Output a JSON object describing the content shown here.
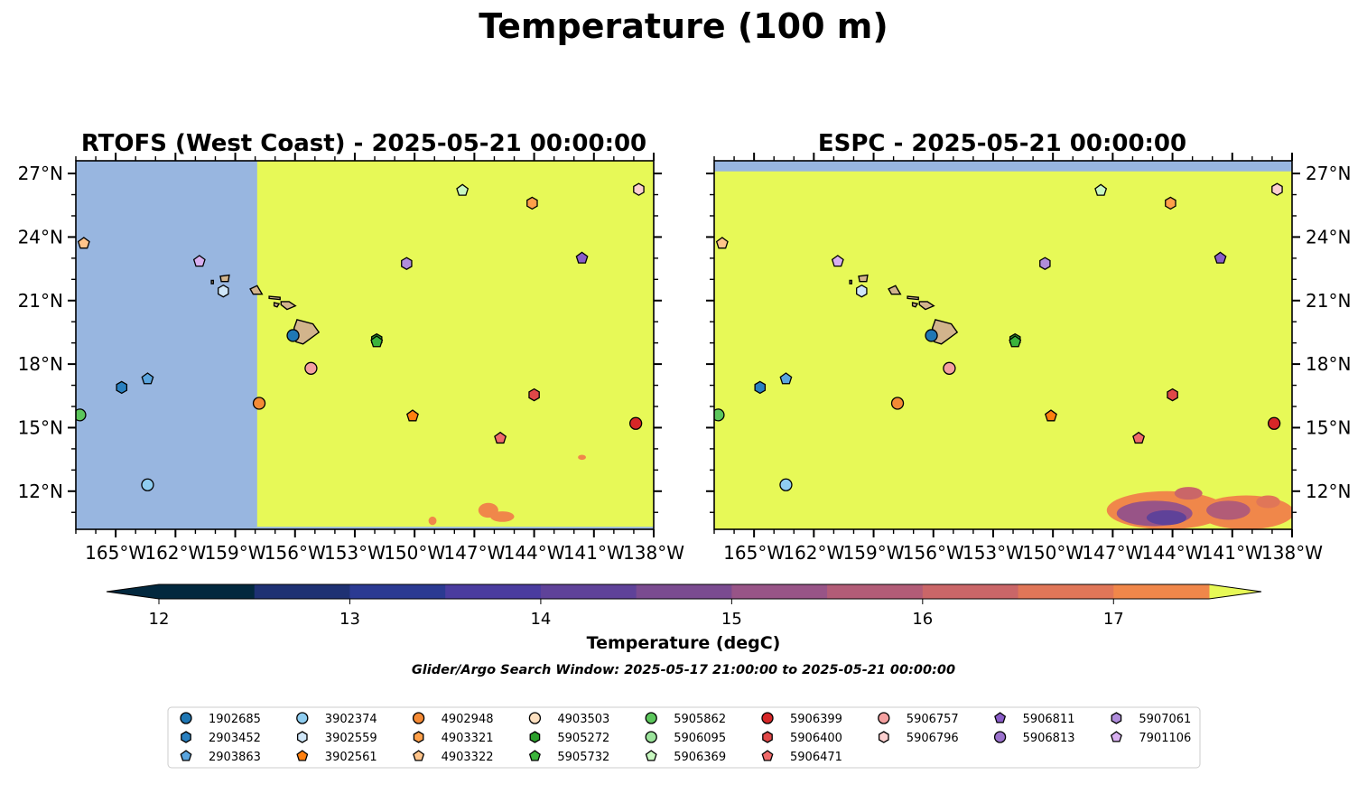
{
  "title": "Temperature (100 m)",
  "colors": {
    "land": "#d2b48c",
    "nodata": "#98b6e0",
    "fill": "#e7f957",
    "frame": "#000000"
  },
  "colorbar": {
    "label": "Temperature (degC)",
    "min": 11.75,
    "max": 17.75,
    "bounds": [
      12,
      12.5,
      13,
      13.5,
      14,
      14.5,
      15,
      15.5,
      16,
      16.5,
      17,
      17.5
    ],
    "colors": [
      "#02283e",
      "#1e3173",
      "#2b3a92",
      "#4a3c9f",
      "#5f4299",
      "#7a4b90",
      "#985487",
      "#b25c77",
      "#ca6668",
      "#e07658",
      "#f0874a",
      "#f8a33d",
      "#f9c93c"
    ],
    "under_color": "#02283e",
    "over_color": "#e7f957",
    "ticks": [
      12,
      13,
      14,
      15,
      16,
      17
    ],
    "tick_labels": [
      "12",
      "13",
      "14",
      "15",
      "16",
      "17"
    ]
  },
  "search_window": "Glider/Argo Search Window: 2025-05-17 21:00:00 to 2025-05-21 00:00:00",
  "chart_data": {
    "type": "scatter",
    "xlim": [
      -167,
      -138
    ],
    "ylim": [
      10.2,
      27.6
    ],
    "x_ticks": [
      -165,
      -162,
      -159,
      -156,
      -153,
      -150,
      -147,
      -144,
      -141,
      -138
    ],
    "x_tick_labels": [
      "165°W",
      "162°W",
      "159°W",
      "156°W",
      "153°W",
      "150°W",
      "147°W",
      "144°W",
      "141°W",
      "138°W"
    ],
    "y_ticks": [
      12,
      15,
      18,
      21,
      24,
      27
    ],
    "y_tick_labels": [
      "12°N",
      "15°N",
      "18°N",
      "21°N",
      "24°N",
      "27°N"
    ],
    "panels": [
      {
        "title": "RTOFS (West Coast) - 2025-05-21 00:00:00",
        "ytick_side": "left",
        "nodata_regions": [
          {
            "lon": [
              -167,
              -157.9
            ],
            "lat": [
              10.2,
              27.6
            ]
          },
          {
            "lon": [
              -157.9,
              -138
            ],
            "lat": [
              10.2,
              10.32
            ]
          }
        ],
        "warm_patches": [
          {
            "lon": -146.3,
            "lat": 11.1,
            "r_lon": 0.5,
            "r_lat": 0.35,
            "value": 16.6
          },
          {
            "lon": -145.6,
            "lat": 10.8,
            "r_lon": 0.6,
            "r_lat": 0.25,
            "value": 16.6
          },
          {
            "lon": -149.1,
            "lat": 10.6,
            "r_lon": 0.2,
            "r_lat": 0.2,
            "value": 16.6
          },
          {
            "lon": -141.6,
            "lat": 13.6,
            "r_lon": 0.2,
            "r_lat": 0.12,
            "value": 16.6
          }
        ]
      },
      {
        "title": "ESPC - 2025-05-21 00:00:00",
        "ytick_side": "right",
        "nodata_regions": [
          {
            "lon": [
              -167,
              -138
            ],
            "lat": [
              27.1,
              27.6
            ]
          }
        ],
        "warm_patches": [
          {
            "lon": -144.3,
            "lat": 11.1,
            "r_lon": 3.0,
            "r_lat": 0.9,
            "value": 16.6
          },
          {
            "lon": -140.3,
            "lat": 11.0,
            "r_lon": 2.4,
            "r_lat": 0.8,
            "value": 16.6
          },
          {
            "lon": -144.9,
            "lat": 10.95,
            "r_lon": 1.9,
            "r_lat": 0.6,
            "value": 14.7
          },
          {
            "lon": -144.3,
            "lat": 10.75,
            "r_lon": 1.0,
            "r_lat": 0.35,
            "value": 13.8
          },
          {
            "lon": -141.2,
            "lat": 11.1,
            "r_lon": 1.1,
            "r_lat": 0.45,
            "value": 15.3
          },
          {
            "lon": -139.2,
            "lat": 11.5,
            "r_lon": 0.6,
            "r_lat": 0.3,
            "value": 16.1
          },
          {
            "lon": -143.2,
            "lat": 11.9,
            "r_lon": 0.7,
            "r_lat": 0.3,
            "value": 15.8
          }
        ]
      }
    ],
    "land": [
      {
        "name": "Hawaii",
        "points": [
          [
            -155.9,
            20.1
          ],
          [
            -155.1,
            19.9
          ],
          [
            -154.8,
            19.5
          ],
          [
            -155.6,
            18.95
          ],
          [
            -155.95,
            19.05
          ],
          [
            -156.05,
            19.7
          ]
        ]
      },
      {
        "name": "Maui",
        "points": [
          [
            -156.7,
            20.95
          ],
          [
            -156.3,
            20.95
          ],
          [
            -155.98,
            20.75
          ],
          [
            -156.4,
            20.58
          ],
          [
            -156.7,
            20.8
          ]
        ]
      },
      {
        "name": "Molokai",
        "points": [
          [
            -157.3,
            21.2
          ],
          [
            -156.75,
            21.15
          ],
          [
            -156.75,
            21.05
          ],
          [
            -157.3,
            21.1
          ]
        ]
      },
      {
        "name": "Lanai",
        "points": [
          [
            -157.05,
            20.9
          ],
          [
            -156.8,
            20.85
          ],
          [
            -156.9,
            20.7
          ],
          [
            -157.05,
            20.75
          ]
        ]
      },
      {
        "name": "Oahu",
        "points": [
          [
            -158.25,
            21.55
          ],
          [
            -157.9,
            21.7
          ],
          [
            -157.65,
            21.3
          ],
          [
            -158.1,
            21.3
          ]
        ]
      },
      {
        "name": "Kauai",
        "points": [
          [
            -159.75,
            22.15
          ],
          [
            -159.3,
            22.2
          ],
          [
            -159.35,
            21.9
          ],
          [
            -159.7,
            21.9
          ]
        ]
      },
      {
        "name": "Niihau",
        "points": [
          [
            -160.2,
            21.95
          ],
          [
            -160.1,
            21.95
          ],
          [
            -160.1,
            21.8
          ],
          [
            -160.2,
            21.8
          ]
        ]
      }
    ],
    "series": [
      {
        "name": "1902685",
        "marker": "circle",
        "color": "#1f77b4",
        "x": [
          -156.1
        ],
        "y": [
          19.35
        ]
      },
      {
        "name": "2903452",
        "marker": "hexagon",
        "color": "#2980c0",
        "x": [
          -164.7
        ],
        "y": [
          16.9
        ]
      },
      {
        "name": "2903863",
        "marker": "pentagon",
        "color": "#5aa5df",
        "x": [
          -163.4
        ],
        "y": [
          17.3
        ]
      },
      {
        "name": "3902374",
        "marker": "circle",
        "color": "#8fcdf0",
        "x": [
          -163.4
        ],
        "y": [
          12.3
        ]
      },
      {
        "name": "3902559",
        "marker": "hexagon",
        "color": "#cfe6f8",
        "x": [
          -159.6
        ],
        "y": [
          21.45
        ]
      },
      {
        "name": "3902561",
        "marker": "pentagon",
        "color": "#ff7f0e",
        "x": [
          -150.1
        ],
        "y": [
          15.55
        ]
      },
      {
        "name": "4902948",
        "marker": "circle",
        "color": "#f48a35",
        "x": [
          -157.8
        ],
        "y": [
          16.15
        ]
      },
      {
        "name": "4903321",
        "marker": "hexagon",
        "color": "#ffa04a",
        "x": [
          -144.1
        ],
        "y": [
          25.6
        ]
      },
      {
        "name": "4903322",
        "marker": "pentagon",
        "color": "#ffc48a",
        "x": [
          -166.6
        ],
        "y": [
          23.7
        ]
      },
      {
        "name": "4903503",
        "marker": "circle",
        "color": "#fde0c0",
        "x": [],
        "y": []
      },
      {
        "name": "5905862",
        "marker": "circle",
        "color": "#5cc65c",
        "x": [
          -166.8
        ],
        "y": [
          15.6
        ]
      },
      {
        "name": "5905272",
        "marker": "hexagon",
        "color": "#2ca02c",
        "x": [
          -151.9
        ],
        "y": [
          19.15
        ]
      },
      {
        "name": "5905732",
        "marker": "pentagon",
        "color": "#3cb43c",
        "x": [
          -151.9
        ],
        "y": [
          19.05
        ]
      },
      {
        "name": "5906095",
        "marker": "circle",
        "color": "#9be39b",
        "x": [],
        "y": []
      },
      {
        "name": "5906369",
        "marker": "pentagon",
        "color": "#c8f8c0",
        "x": [
          -147.6
        ],
        "y": [
          26.2
        ]
      },
      {
        "name": "5906399",
        "marker": "circle",
        "color": "#d62728",
        "x": [
          -138.9
        ],
        "y": [
          15.2
        ]
      },
      {
        "name": "5906400",
        "marker": "hexagon",
        "color": "#e04848",
        "x": [
          -144.0
        ],
        "y": [
          16.55
        ]
      },
      {
        "name": "5906471",
        "marker": "pentagon",
        "color": "#f06a6a",
        "x": [
          -145.7
        ],
        "y": [
          14.5
        ]
      },
      {
        "name": "5906757",
        "marker": "circle",
        "color": "#f4a0a0",
        "x": [
          -155.2
        ],
        "y": [
          17.8
        ]
      },
      {
        "name": "5906796",
        "marker": "hexagon",
        "color": "#fcd0d0",
        "x": [
          -138.75
        ],
        "y": [
          26.25
        ]
      },
      {
        "name": "5906811",
        "marker": "pentagon",
        "color": "#8a5cc8",
        "x": [
          -141.6
        ],
        "y": [
          23.0
        ]
      },
      {
        "name": "5906813",
        "marker": "circle",
        "color": "#9b72cc",
        "x": [],
        "y": []
      },
      {
        "name": "5907061",
        "marker": "hexagon",
        "color": "#b08ddc",
        "x": [
          -150.4
        ],
        "y": [
          22.75
        ]
      },
      {
        "name": "7901106",
        "marker": "pentagon",
        "color": "#d8b0f0",
        "x": [
          -160.8
        ],
        "y": [
          22.85
        ]
      }
    ],
    "legend": {
      "location": "bottom",
      "ncol": 10,
      "columns": [
        [
          "1902685",
          "2903452",
          "2903863"
        ],
        [
          "3902374",
          "3902559",
          "3902561"
        ],
        [
          "4902948",
          "4903321",
          "4903322"
        ],
        [
          "4903503",
          "5905272",
          "5905732"
        ],
        [
          "5905862",
          "5906095",
          "5906369"
        ],
        [
          "5906399",
          "5906400",
          "5906471"
        ],
        [
          "5906757",
          "5906796"
        ],
        [
          "5906811",
          "5906813"
        ],
        [
          "5907061",
          "7901106"
        ]
      ]
    },
    "xlabel": "",
    "ylabel": "",
    "grid": false
  }
}
